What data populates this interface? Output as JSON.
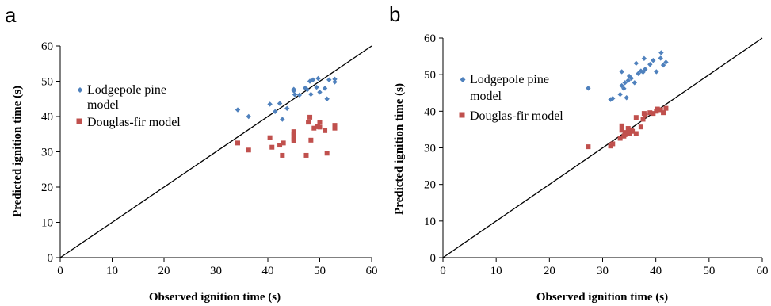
{
  "chart_data": [
    {
      "type": "scatter",
      "panel": "a",
      "xlabel": "Observed ignition time (s)",
      "ylabel": "Predicted ignition time (s)",
      "xlim": [
        0,
        60
      ],
      "ylim": [
        0,
        60
      ],
      "xticks": [
        "0",
        "10",
        "20",
        "30",
        "40",
        "50",
        "60"
      ],
      "yticks": [
        "0",
        "10",
        "20",
        "30",
        "40",
        "50",
        "60"
      ],
      "reference_line": "1:1",
      "legend_position": "upper-left",
      "grid": false,
      "series": [
        {
          "name": "Lodgepole pine model",
          "marker": "diamond",
          "color": "#4f81bd",
          "points": [
            [
              34.2,
              41.9
            ],
            [
              36.3,
              40.0
            ],
            [
              40.4,
              43.5
            ],
            [
              41.4,
              41.4
            ],
            [
              42.3,
              43.7
            ],
            [
              42.8,
              39.2
            ],
            [
              43.7,
              42.3
            ],
            [
              45.0,
              47.3
            ],
            [
              45.0,
              47.7
            ],
            [
              45.2,
              46.2
            ],
            [
              46.1,
              46.1
            ],
            [
              47.2,
              48.1
            ],
            [
              47.6,
              47.6
            ],
            [
              48.1,
              50.0
            ],
            [
              48.3,
              46.3
            ],
            [
              48.7,
              50.4
            ],
            [
              49.4,
              48.3
            ],
            [
              49.7,
              50.8
            ],
            [
              50.0,
              46.9
            ],
            [
              51.0,
              48.0
            ],
            [
              51.4,
              45.0
            ],
            [
              51.8,
              50.4
            ],
            [
              52.9,
              50.6
            ],
            [
              52.9,
              49.8
            ]
          ]
        },
        {
          "name": "Douglas-fir model",
          "marker": "square",
          "color": "#c0504d",
          "points": [
            [
              34.2,
              32.5
            ],
            [
              36.3,
              30.5
            ],
            [
              40.4,
              34.0
            ],
            [
              40.8,
              31.3
            ],
            [
              42.3,
              31.9
            ],
            [
              42.8,
              29.0
            ],
            [
              43.0,
              32.5
            ],
            [
              45.0,
              33.1
            ],
            [
              45.0,
              33.6
            ],
            [
              45.0,
              34.4
            ],
            [
              45.0,
              35.0
            ],
            [
              45.0,
              35.7
            ],
            [
              47.4,
              29.0
            ],
            [
              47.8,
              38.4
            ],
            [
              48.1,
              39.8
            ],
            [
              48.3,
              33.3
            ],
            [
              48.9,
              36.7
            ],
            [
              49.6,
              37.1
            ],
            [
              50.0,
              38.4
            ],
            [
              50.0,
              37.0
            ],
            [
              51.0,
              36.0
            ],
            [
              51.4,
              29.6
            ],
            [
              52.9,
              37.5
            ],
            [
              52.9,
              36.7
            ]
          ]
        }
      ]
    },
    {
      "type": "scatter",
      "panel": "b",
      "xlabel": "Observed ignition time (s)",
      "ylabel": "Predicted ignition time (s)",
      "xlim": [
        0,
        60
      ],
      "ylim": [
        0,
        60
      ],
      "xticks": [
        "0",
        "10",
        "20",
        "30",
        "40",
        "50",
        "60"
      ],
      "yticks": [
        "0",
        "10",
        "20",
        "30",
        "40",
        "50",
        "60"
      ],
      "reference_line": "1:1",
      "legend_position": "upper-left",
      "grid": false,
      "series": [
        {
          "name": "Lodgepole pine model",
          "marker": "diamond",
          "color": "#4f81bd",
          "points": [
            [
              27.3,
              46.3
            ],
            [
              31.5,
              43.2
            ],
            [
              31.9,
              43.5
            ],
            [
              33.3,
              44.6
            ],
            [
              33.6,
              47.0
            ],
            [
              33.6,
              50.8
            ],
            [
              34.0,
              46.2
            ],
            [
              34.2,
              47.8
            ],
            [
              34.5,
              43.7
            ],
            [
              34.8,
              48.4
            ],
            [
              35.0,
              49.6
            ],
            [
              35.4,
              49.0
            ],
            [
              36.0,
              47.8
            ],
            [
              36.3,
              53.1
            ],
            [
              36.7,
              50.3
            ],
            [
              37.2,
              51.0
            ],
            [
              37.6,
              50.7
            ],
            [
              37.8,
              54.4
            ],
            [
              38.0,
              51.5
            ],
            [
              38.9,
              52.8
            ],
            [
              39.5,
              53.9
            ],
            [
              40.1,
              50.8
            ],
            [
              40.9,
              54.5
            ],
            [
              41.0,
              56.0
            ],
            [
              41.4,
              52.6
            ],
            [
              41.9,
              53.4
            ]
          ]
        },
        {
          "name": "Douglas-fir model",
          "marker": "square",
          "color": "#c0504d",
          "points": [
            [
              27.3,
              30.3
            ],
            [
              31.5,
              30.5
            ],
            [
              31.9,
              31.1
            ],
            [
              33.3,
              32.6
            ],
            [
              33.6,
              34.8
            ],
            [
              33.6,
              36.0
            ],
            [
              34.0,
              33.2
            ],
            [
              34.2,
              33.6
            ],
            [
              34.5,
              34.2
            ],
            [
              34.8,
              35.3
            ],
            [
              35.0,
              34.0
            ],
            [
              35.4,
              34.8
            ],
            [
              35.6,
              34.5
            ],
            [
              36.3,
              33.9
            ],
            [
              36.3,
              38.3
            ],
            [
              37.2,
              35.7
            ],
            [
              37.6,
              37.8
            ],
            [
              37.8,
              39.4
            ],
            [
              38.0,
              38.9
            ],
            [
              38.9,
              39.6
            ],
            [
              39.5,
              39.4
            ],
            [
              40.1,
              40.0
            ],
            [
              40.3,
              40.6
            ],
            [
              40.9,
              40.4
            ],
            [
              41.4,
              39.6
            ],
            [
              41.9,
              40.8
            ]
          ]
        }
      ]
    }
  ]
}
